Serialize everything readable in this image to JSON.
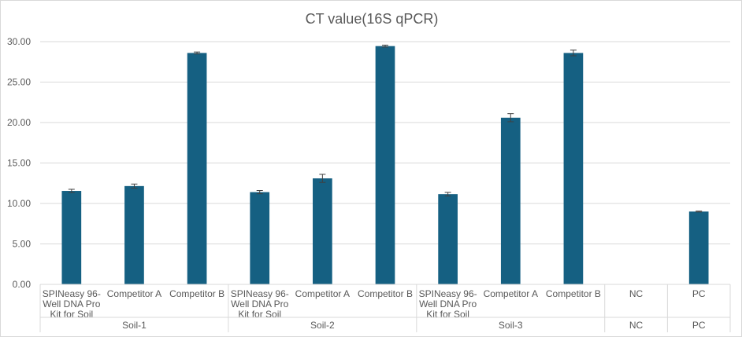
{
  "chart_data": {
    "type": "bar",
    "title": "CT value(16S qPCR)",
    "xlabel": "",
    "ylabel": "",
    "ylim": [
      0,
      30
    ],
    "yticks": [
      "0.00",
      "5.00",
      "10.00",
      "15.00",
      "20.00",
      "25.00",
      "30.00"
    ],
    "grid": true,
    "legend": "none",
    "bar_color": "#156082",
    "gridline_color": "#d9d9d9",
    "error_bar_color": "#404040",
    "groups": [
      {
        "name": "Soil-1",
        "categories": [
          "SPINeasy 96-Well DNA Pro Kit for Soil",
          "Competitor A",
          "Competitor B"
        ]
      },
      {
        "name": "Soil-2",
        "categories": [
          "SPINeasy 96-Well DNA Pro Kit for Soil",
          "Competitor A",
          "Competitor B"
        ]
      },
      {
        "name": "Soil-3",
        "categories": [
          "SPINeasy 96-Well DNA Pro Kit for Soil",
          "Competitor A",
          "Competitor B"
        ]
      },
      {
        "name": "NC",
        "categories": [
          "NC"
        ]
      },
      {
        "name": "PC",
        "categories": [
          "PC"
        ]
      }
    ],
    "category_label_lines": [
      [
        "SPINeasy 96-",
        "Well DNA Pro",
        "Kit for Soil"
      ],
      [
        "Competitor A"
      ],
      [
        "Competitor B"
      ],
      [
        "SPINeasy 96-",
        "Well DNA Pro",
        "Kit for Soil"
      ],
      [
        "Competitor A"
      ],
      [
        "Competitor B"
      ],
      [
        "SPINeasy 96-",
        "Well DNA Pro",
        "Kit for Soil"
      ],
      [
        "Competitor A"
      ],
      [
        "Competitor B"
      ],
      [
        "NC"
      ],
      [
        "PC"
      ]
    ],
    "values": [
      11.55,
      12.15,
      28.6,
      11.4,
      13.1,
      29.45,
      11.15,
      20.6,
      28.6,
      null,
      9.0
    ],
    "errors": [
      0.2,
      0.25,
      0.12,
      0.2,
      0.5,
      0.12,
      0.22,
      0.5,
      0.35,
      null,
      0.05
    ]
  }
}
